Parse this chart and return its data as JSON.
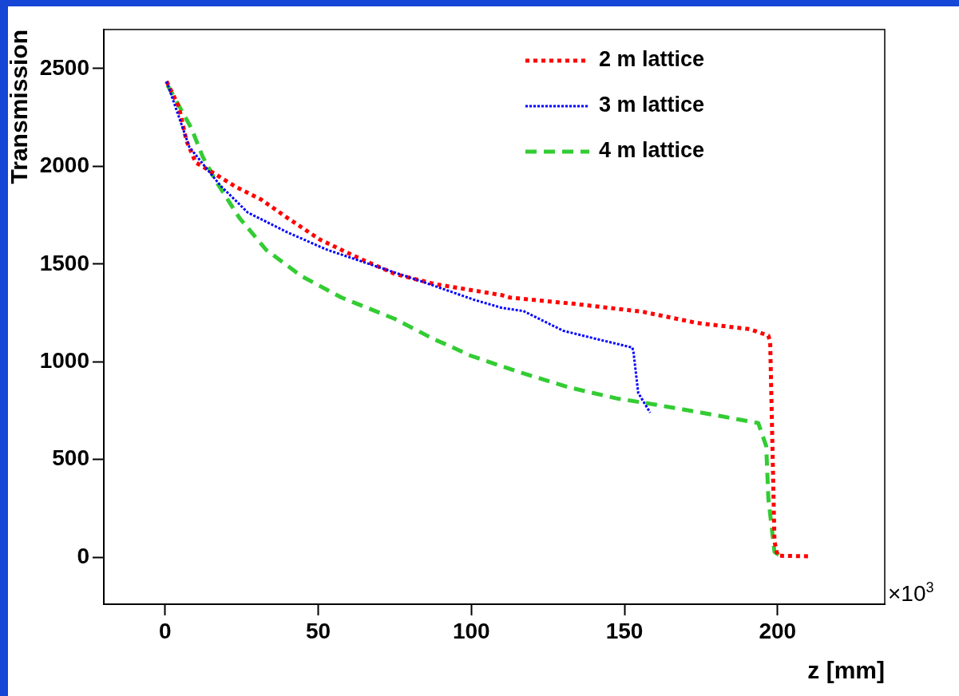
{
  "chart_data": {
    "type": "line",
    "xlabel": "z [mm]",
    "ylabel": "Transmission",
    "xlim": [
      -20,
      235
    ],
    "ylim": [
      -240,
      2700
    ],
    "xticks": [
      0,
      50,
      100,
      150,
      200
    ],
    "yticks": [
      0,
      500,
      1000,
      1500,
      2000,
      2500
    ],
    "grid": false,
    "legend": "top right",
    "marker": "none",
    "annotations": [
      "×10$^{3}$"
    ],
    "series": [
      {
        "name": "2 m lattice",
        "color": "#ff0000",
        "line_style": "dotted",
        "x": [
          0.5,
          4.5,
          7,
          10,
          15.7,
          22.8,
          31.4,
          40,
          50.5,
          62,
          75,
          88,
          110,
          112.6,
          134,
          156,
          173.6,
          191,
          197,
          197.6,
          199,
          200,
          211
        ],
        "values": [
          2435,
          2305,
          2130,
          2020,
          1967,
          1898,
          1830,
          1736,
          1626,
          1540,
          1450,
          1398,
          1341,
          1329,
          1296,
          1256,
          1199,
          1167,
          1134,
          1100,
          81,
          8,
          5
        ]
      },
      {
        "name": "3 m lattice",
        "color": "#0000ff",
        "line_style": "dotted",
        "x": [
          0.5,
          7.9,
          14,
          18.3,
          27,
          40,
          53,
          66,
          84,
          101,
          110,
          117,
          130,
          140.6,
          152.6,
          153,
          154.5,
          158.4
        ],
        "values": [
          2435,
          2100,
          1980,
          1898,
          1764,
          1662,
          1573,
          1504,
          1410,
          1317,
          1276,
          1260,
          1159,
          1118,
          1073,
          1045,
          841,
          740
        ]
      },
      {
        "name": "4 m lattice",
        "color": "#33cc33",
        "line_style": "dashed",
        "x": [
          0.8,
          8.6,
          12.3,
          16.5,
          24.3,
          33,
          44.5,
          57.6,
          75,
          88,
          92.4,
          99.5,
          115,
          131.7,
          147.4,
          160.5,
          178,
          193.7,
          196.3,
          197,
          199,
          201.6
        ],
        "values": [
          2415,
          2195,
          2049,
          1927,
          1736,
          1573,
          1439,
          1329,
          1220,
          1114,
          1085,
          1033,
          951,
          870,
          813,
          780,
          732,
          687,
          569,
          301,
          28,
          0
        ]
      }
    ]
  }
}
